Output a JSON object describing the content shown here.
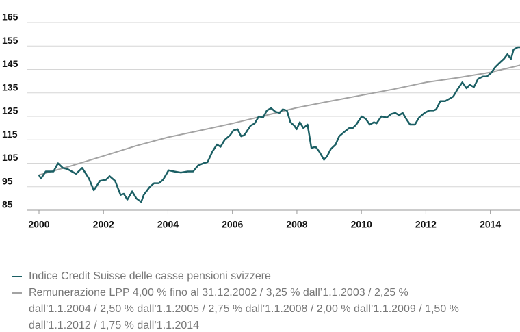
{
  "chart_data": {
    "type": "line",
    "xlim": [
      2000,
      2014.92
    ],
    "xticks": [
      2000,
      2002,
      2004,
      2006,
      2008,
      2010,
      2012,
      2014
    ],
    "ylim": [
      85,
      165
    ],
    "yticks": [
      85,
      95,
      105,
      115,
      125,
      135,
      145,
      155,
      165
    ],
    "grid": true,
    "series": [
      {
        "name": "Indice Credit Suisse delle casse pensioni svizzere",
        "color": "#1b5f64",
        "x": [
          2000,
          2000.06,
          2000.21,
          2000.45,
          2000.59,
          2000.74,
          2000.89,
          2001.15,
          2001.34,
          2001.55,
          2001.7,
          2001.89,
          2002.08,
          2002.19,
          2002.36,
          2002.53,
          2002.63,
          2002.74,
          2002.89,
          2003.02,
          2003.17,
          2003.25,
          2003.44,
          2003.57,
          2003.72,
          2003.85,
          2004.02,
          2004.19,
          2004.4,
          2004.61,
          2004.78,
          2004.93,
          2005.1,
          2005.23,
          2005.38,
          2005.52,
          2005.63,
          2005.76,
          2005.93,
          2006.03,
          2006.16,
          2006.27,
          2006.37,
          2006.56,
          2006.69,
          2006.82,
          2006.95,
          2007.07,
          2007.2,
          2007.33,
          2007.46,
          2007.56,
          2007.69,
          2007.8,
          2007.92,
          2007.99,
          2008.09,
          2008.2,
          2008.33,
          2008.45,
          2008.58,
          2008.69,
          2008.84,
          2008.94,
          2009.05,
          2009.2,
          2009.31,
          2009.48,
          2009.62,
          2009.73,
          2009.84,
          2010.01,
          2010.13,
          2010.26,
          2010.39,
          2010.47,
          2010.62,
          2010.79,
          2010.92,
          2011.05,
          2011.17,
          2011.28,
          2011.41,
          2011.51,
          2011.66,
          2011.79,
          2011.96,
          2012.11,
          2012.24,
          2012.32,
          2012.45,
          2012.6,
          2012.73,
          2012.85,
          2012.98,
          2013.13,
          2013.26,
          2013.36,
          2013.49,
          2013.62,
          2013.77,
          2013.89,
          2014.02,
          2014.15,
          2014.3,
          2014.42,
          2014.53,
          2014.64,
          2014.72,
          2014.85,
          2014.92
        ],
        "values": [
          100,
          98.5,
          101.5,
          101.5,
          105,
          103,
          102.5,
          100.5,
          103,
          98.5,
          93.5,
          97.5,
          98,
          99.5,
          97.5,
          91.5,
          92,
          89.5,
          93,
          90,
          88.5,
          91.5,
          95,
          96.5,
          96.5,
          98,
          102,
          101.5,
          101,
          101.5,
          101.5,
          104,
          105,
          105.5,
          110,
          113,
          112,
          115,
          117,
          119,
          119.5,
          116.5,
          117,
          121,
          122,
          125,
          124.5,
          127.5,
          128.5,
          127,
          126.5,
          128,
          127.5,
          122.5,
          121,
          119.5,
          122.5,
          120,
          121.5,
          111.5,
          112,
          110,
          106.5,
          108,
          111,
          113,
          116.5,
          118.5,
          120,
          120,
          121.5,
          125,
          124,
          121.5,
          122.5,
          122,
          125,
          124.5,
          126,
          126.5,
          125.5,
          126.5,
          123.5,
          121.5,
          121.5,
          124.5,
          126.5,
          127.5,
          127.5,
          128,
          131.5,
          131.5,
          132.5,
          133.5,
          136.5,
          139.5,
          137,
          138.5,
          137.5,
          141,
          142,
          142,
          143.5,
          146,
          148,
          149.5,
          151.5,
          149.5,
          153.5,
          154.5,
          154.5
        ]
      },
      {
        "name": "Remunerazione LPP 4,00 % fino al 31.12.2002 / 3,25 % dall’1.1.2003 / 2,25 % dall’1.1.2004 / 2,50 % dall’1.1.2005 / 2,75 % dall’1.1.2008 / 2,00 % dall’1.1.2009 / 1,50 % dall’1.1.2012 / 1,75 % dall’1.1.2014",
        "color": "#a3a3a3",
        "x": [
          2000,
          2001,
          2002,
          2003,
          2004,
          2005,
          2006,
          2007,
          2008,
          2009,
          2010,
          2011,
          2012,
          2013,
          2014,
          2014.92
        ],
        "values": [
          100,
          103.9,
          108.1,
          112.4,
          116.1,
          119,
          122,
          125.3,
          128.7,
          131.4,
          134,
          136.6,
          139.5,
          141.5,
          143.8,
          146.8
        ]
      }
    ]
  }
}
